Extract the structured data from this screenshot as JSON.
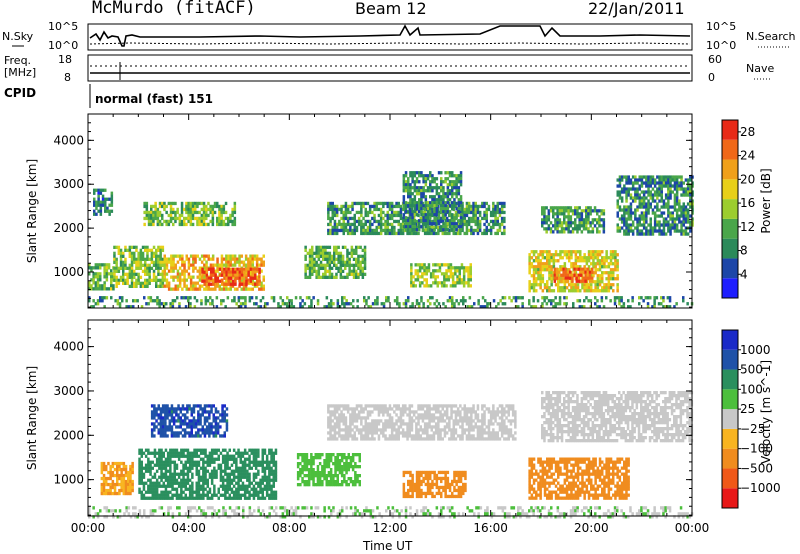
{
  "header": {
    "title": "McMurdo (fitACF)",
    "beam": "Beam 12",
    "date": "22/Jan/2011"
  },
  "nsky_panel": {
    "left_label": "N.Sky",
    "right_label": "N.Search",
    "left_ticks": [
      "10^5",
      "10^0"
    ],
    "right_ticks": [
      "10^5",
      "10^0"
    ]
  },
  "freq_panel": {
    "left_label_line1": "Freq.",
    "left_label_line2": "[MHz]",
    "right_label": "Nave",
    "left_ticks": [
      "18",
      "8"
    ],
    "right_ticks": [
      "60",
      "0"
    ]
  },
  "cpid_panel": {
    "label": "CPID",
    "value": "normal (fast) 151"
  },
  "colors": {
    "power": [
      "#1f1fff",
      "#1c46a8",
      "#2b8a5a",
      "#4aa64a",
      "#9ccd2e",
      "#e8d018",
      "#f0a01a",
      "#f06818",
      "#e82a18"
    ],
    "velocity": [
      "#e81818",
      "#f05818",
      "#f08c1e",
      "#f8b420",
      "#c8c8c8",
      "#4cbf3c",
      "#2a8f5e",
      "#1f52a8",
      "#1a2ac8"
    ]
  },
  "chart_data": [
    {
      "type": "heatmap",
      "name": "power",
      "xlabel": "Time UT",
      "ylabel": "Slant Range [km]",
      "x_ticks": [
        "00:00",
        "04:00",
        "08:00",
        "12:00",
        "16:00",
        "20:00",
        "00:00"
      ],
      "xlim_hours": [
        0,
        24
      ],
      "y_ticks": [
        1000,
        2000,
        3000,
        4000
      ],
      "ylim": [
        180,
        4600
      ],
      "colorbar_label": "Power [dB]",
      "colorbar_ticks": [
        4,
        8,
        12,
        16,
        20,
        24,
        28
      ],
      "colorbar_range": [
        0,
        30
      ],
      "patches": [
        {
          "t0": 0.0,
          "t1": 1.0,
          "r0": 600,
          "r1": 1200,
          "value": 12
        },
        {
          "t0": 0.2,
          "t1": 0.9,
          "r0": 2300,
          "r1": 2900,
          "value": 8
        },
        {
          "t0": 1.0,
          "t1": 3.0,
          "r0": 700,
          "r1": 1600,
          "value": 14
        },
        {
          "t0": 2.2,
          "t1": 5.8,
          "r0": 2100,
          "r1": 2600,
          "value": 13
        },
        {
          "t0": 3.0,
          "t1": 7.0,
          "r0": 600,
          "r1": 1400,
          "value": 20
        },
        {
          "t0": 4.5,
          "t1": 6.8,
          "r0": 700,
          "r1": 1100,
          "value": 26
        },
        {
          "t0": 8.6,
          "t1": 11.0,
          "r0": 900,
          "r1": 1600,
          "value": 12
        },
        {
          "t0": 9.5,
          "t1": 16.5,
          "r0": 1900,
          "r1": 2600,
          "value": 10
        },
        {
          "t0": 12.5,
          "t1": 14.8,
          "r0": 2000,
          "r1": 3300,
          "value": 9
        },
        {
          "t0": 12.8,
          "t1": 15.2,
          "r0": 700,
          "r1": 1200,
          "value": 15
        },
        {
          "t0": 17.5,
          "t1": 21.0,
          "r0": 600,
          "r1": 1500,
          "value": 18
        },
        {
          "t0": 18.5,
          "t1": 20.0,
          "r0": 800,
          "r1": 1100,
          "value": 25
        },
        {
          "t0": 18.0,
          "t1": 20.5,
          "r0": 1900,
          "r1": 2500,
          "value": 10
        },
        {
          "t0": 21.0,
          "t1": 24.0,
          "r0": 1900,
          "r1": 3200,
          "value": 9
        },
        {
          "t0": 0.0,
          "t1": 24.0,
          "r0": 180,
          "r1": 450,
          "value": 10
        }
      ]
    },
    {
      "type": "heatmap",
      "name": "velocity",
      "xlabel": "Time UT",
      "ylabel": "Slant Range [km]",
      "x_ticks": [
        "00:00",
        "04:00",
        "08:00",
        "12:00",
        "16:00",
        "20:00",
        "00:00"
      ],
      "xlim_hours": [
        0,
        24
      ],
      "y_ticks": [
        1000,
        2000,
        3000,
        4000
      ],
      "ylim": [
        180,
        4600
      ],
      "colorbar_label": "Velocity [m s^-1]",
      "colorbar_ticks": [
        "1000",
        "500",
        "100",
        "25",
        "−25",
        "−100",
        "−500",
        "−1000"
      ],
      "patches": [
        {
          "t0": 0.5,
          "t1": 1.8,
          "r0": 700,
          "r1": 1400,
          "value": -100
        },
        {
          "t0": 2.0,
          "t1": 7.5,
          "r0": 600,
          "r1": 1700,
          "value": 300
        },
        {
          "t0": 2.5,
          "t1": 5.5,
          "r0": 2000,
          "r1": 2700,
          "value": 800
        },
        {
          "t0": 8.3,
          "t1": 10.8,
          "r0": 900,
          "r1": 1600,
          "value": 60
        },
        {
          "t0": 9.5,
          "t1": 17.0,
          "r0": 1900,
          "r1": 2700,
          "value": 0
        },
        {
          "t0": 12.5,
          "t1": 15.0,
          "r0": 600,
          "r1": 1200,
          "value": -200
        },
        {
          "t0": 17.5,
          "t1": 21.5,
          "r0": 600,
          "r1": 1500,
          "value": -200
        },
        {
          "t0": 18.0,
          "t1": 24.0,
          "r0": 1900,
          "r1": 3000,
          "value": 0
        },
        {
          "t0": 0.0,
          "t1": 24.0,
          "r0": 180,
          "r1": 400,
          "value": 20
        }
      ]
    }
  ]
}
